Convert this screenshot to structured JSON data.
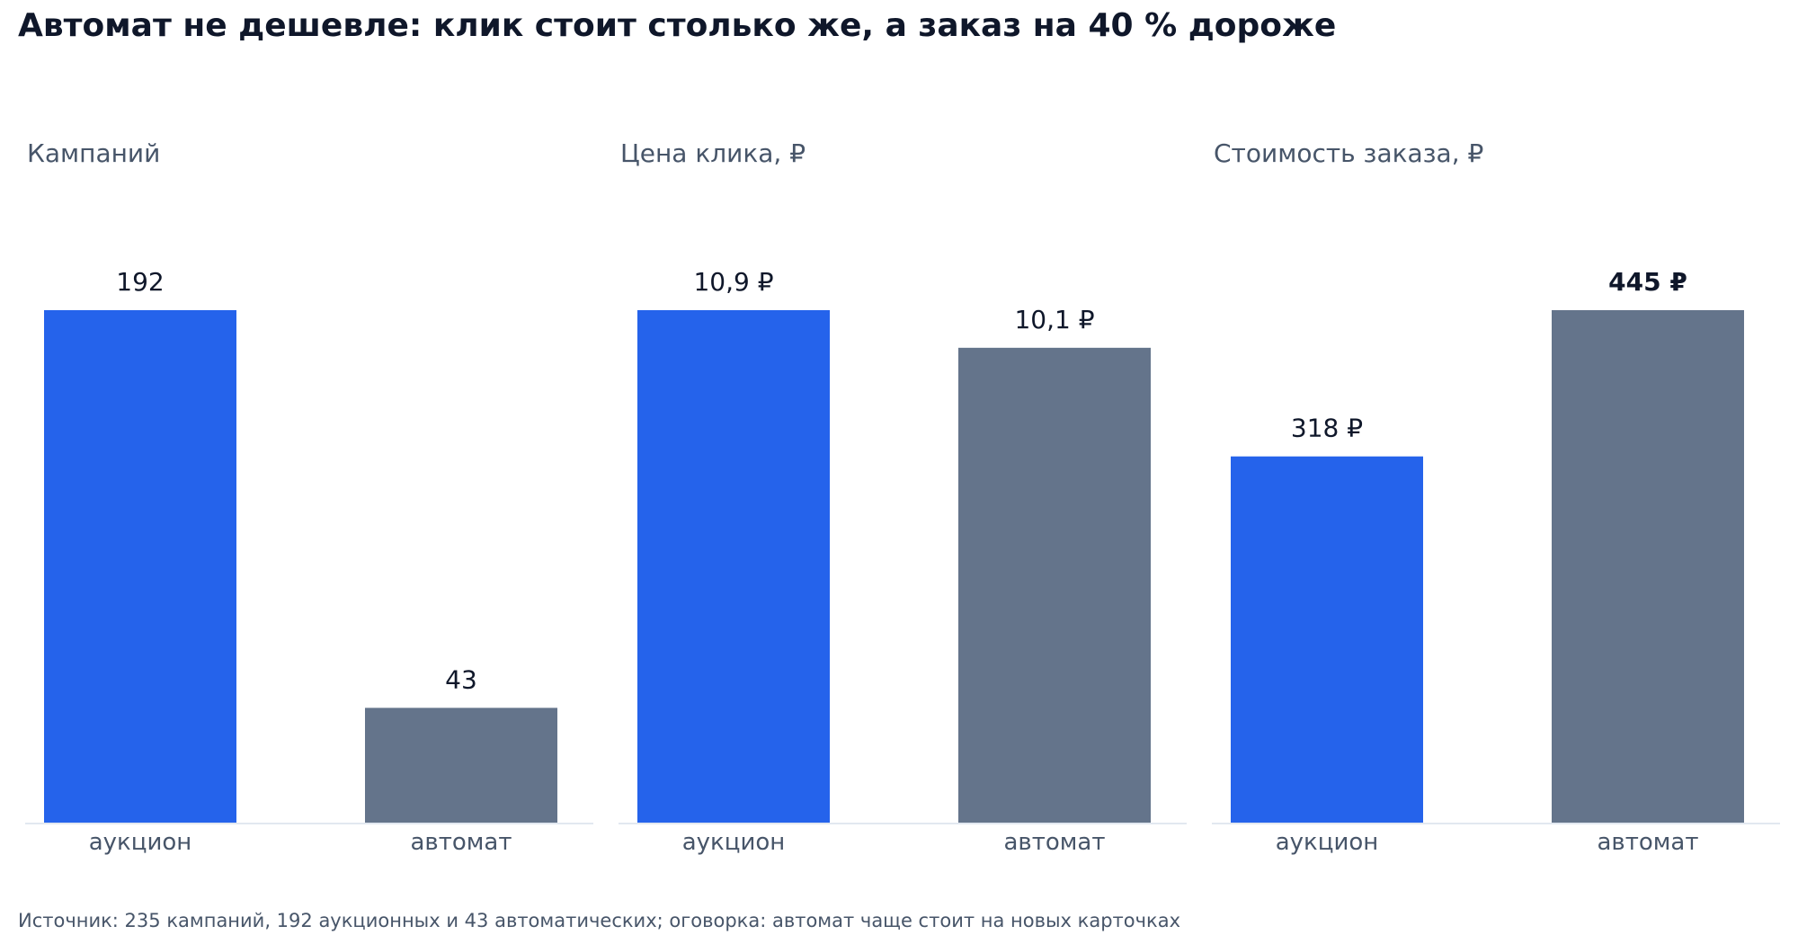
{
  "title": "Автомат не дешевле: клик стоит столько же, а заказ на 40 % дороже",
  "source": "Источник: 235 кампаний, 192 аукционных и 43 автоматических; оговорка: автомат чаще стоит на новых карточках",
  "colors": {
    "auction": "#2563eb",
    "auto": "#64748b",
    "baseline": "#e2e8f0",
    "label": "#0f172a",
    "tick": "#475569"
  },
  "chart_data": [
    {
      "type": "bar",
      "title": "Кампаний",
      "categories": [
        "аукцион",
        "автомат"
      ],
      "values": [
        192,
        43
      ],
      "value_labels": [
        "192",
        "43"
      ],
      "emphasis": [
        false,
        false
      ],
      "ylim": [
        0,
        192
      ],
      "grid": false
    },
    {
      "type": "bar",
      "title": "Цена клика, ₽",
      "categories": [
        "аукцион",
        "автомат"
      ],
      "values": [
        10.9,
        10.1
      ],
      "value_labels": [
        "10,9 ₽",
        "10,1 ₽"
      ],
      "emphasis": [
        false,
        false
      ],
      "ylim": [
        0,
        10.9
      ],
      "grid": false
    },
    {
      "type": "bar",
      "title": "Стоимость заказа, ₽",
      "categories": [
        "аукцион",
        "автомат"
      ],
      "values": [
        318,
        445
      ],
      "value_labels": [
        "318 ₽",
        "445 ₽"
      ],
      "emphasis": [
        false,
        true
      ],
      "ylim": [
        0,
        445
      ],
      "grid": false
    }
  ]
}
